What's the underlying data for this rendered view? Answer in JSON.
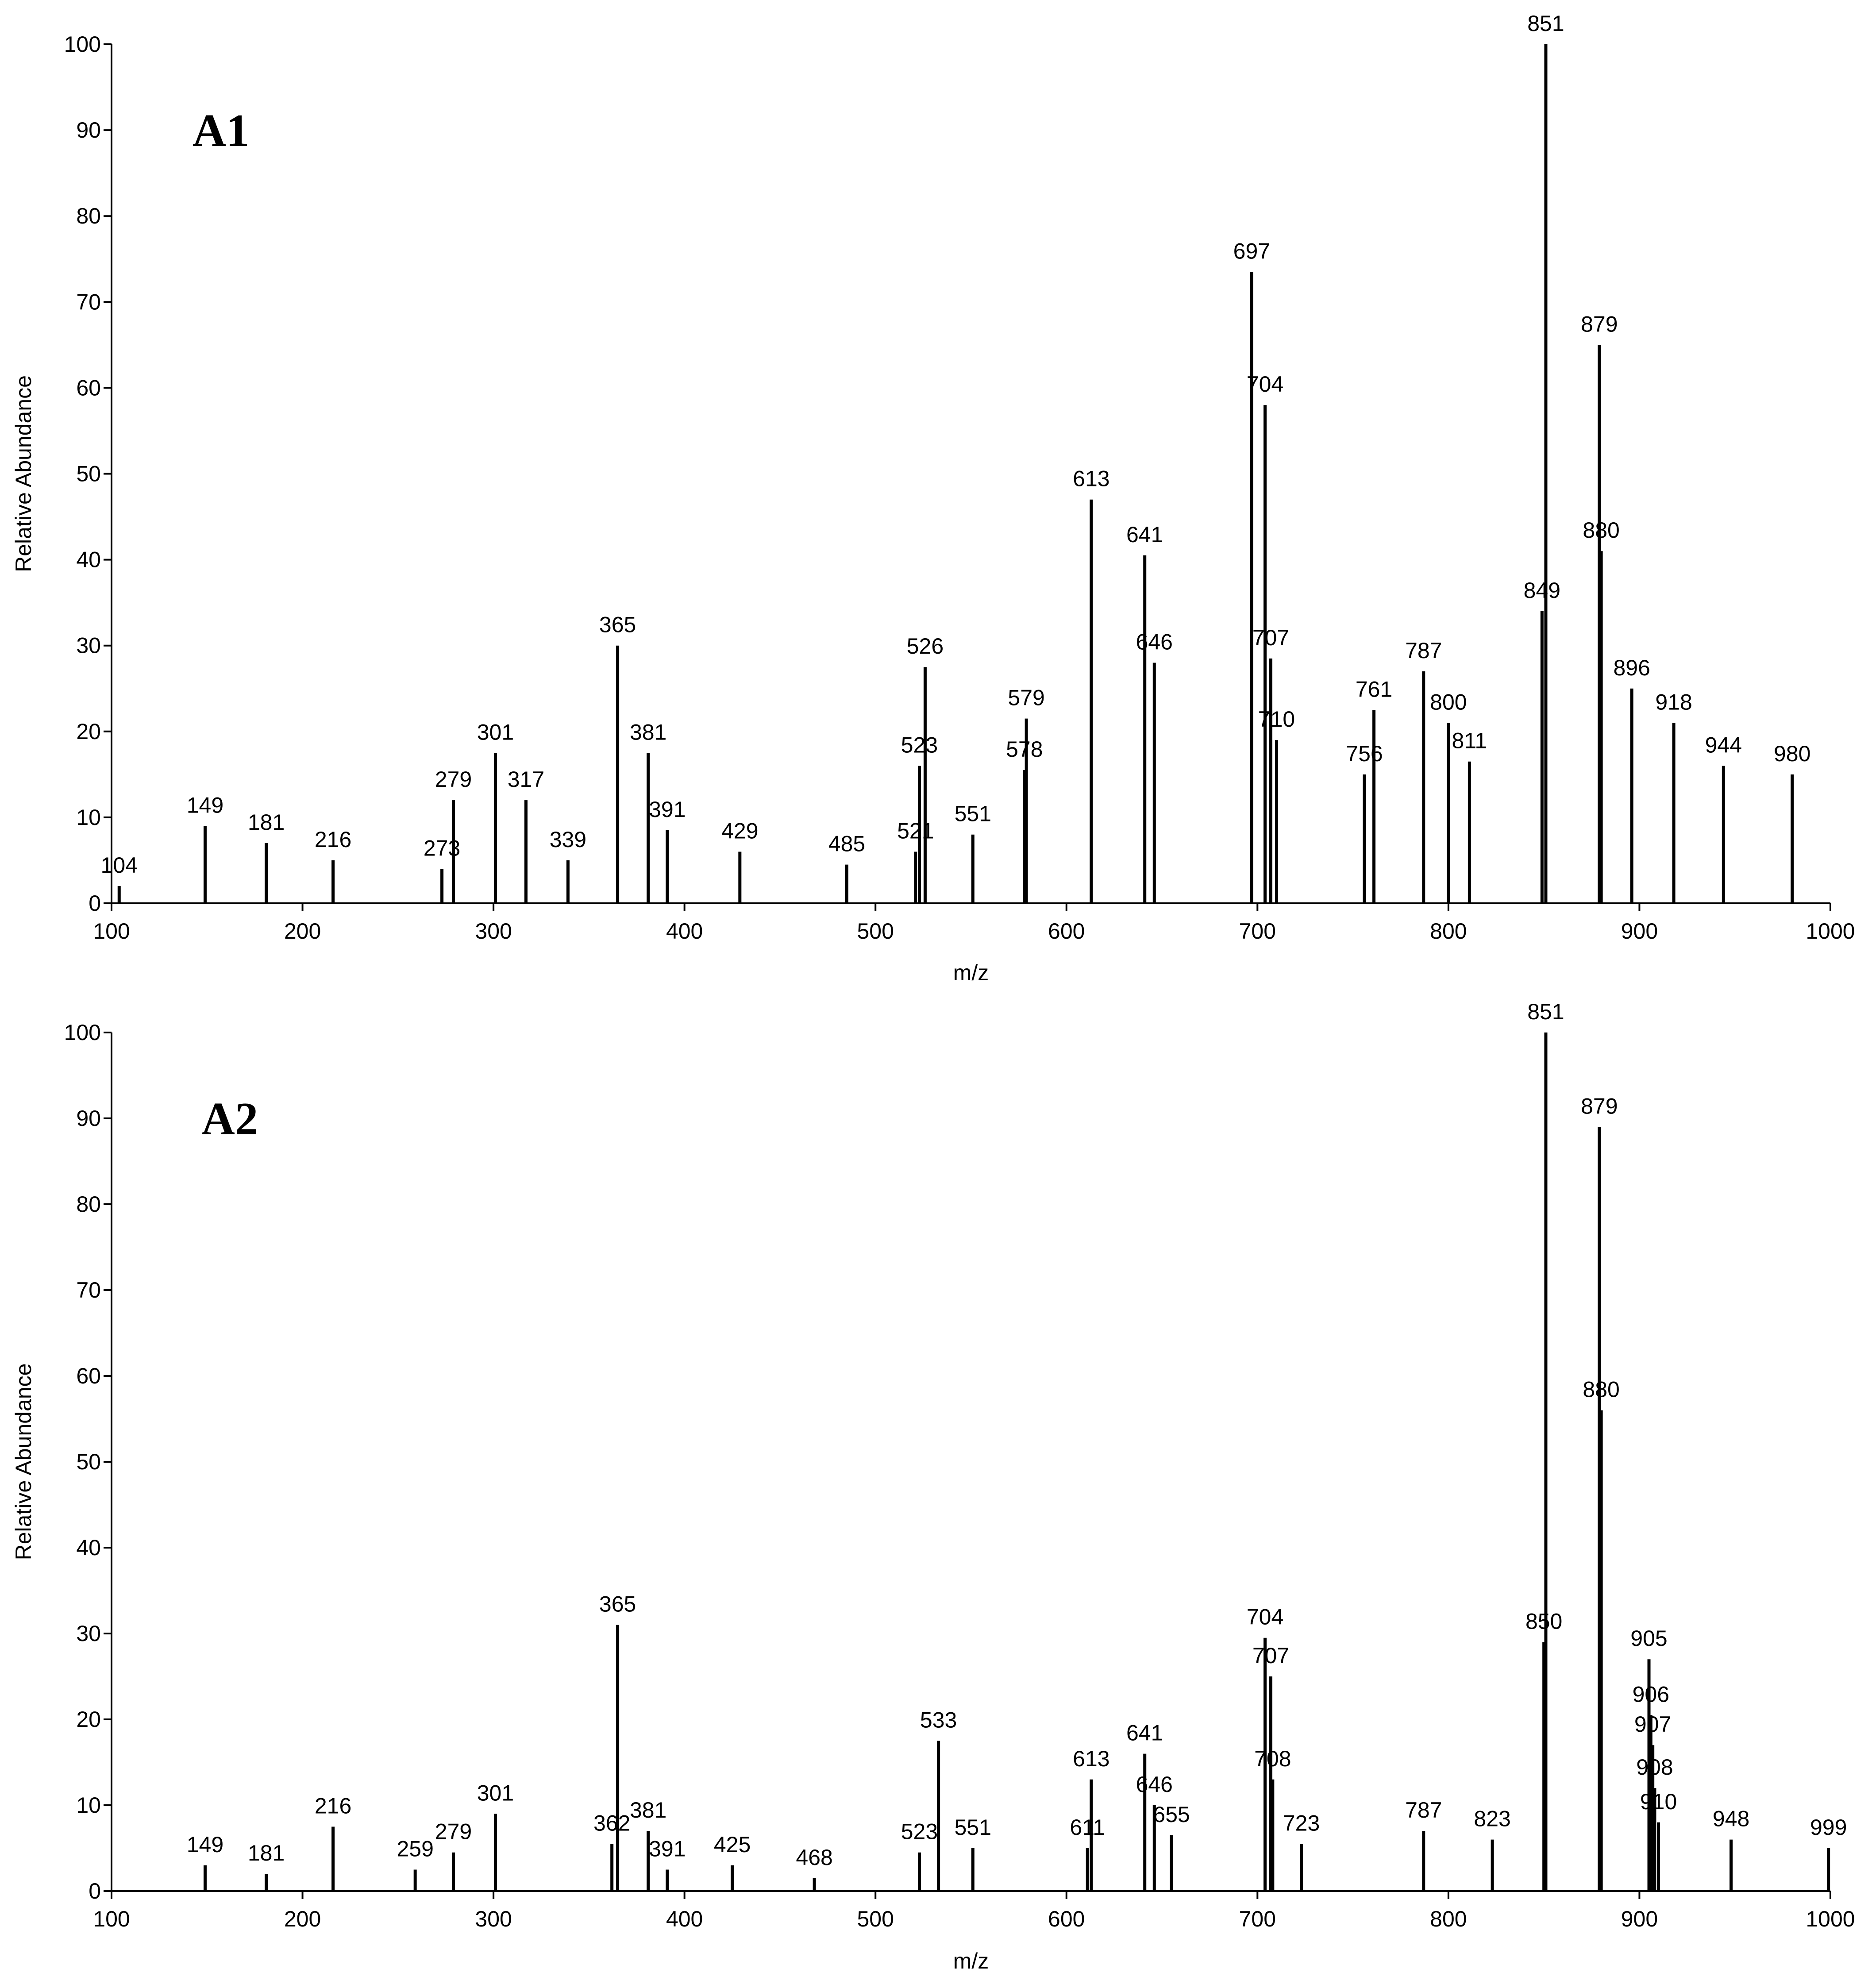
{
  "chart_data": [
    {
      "type": "bar",
      "title": "A1",
      "x_label": "m/z",
      "y_label": "Relative Abundance",
      "color": "#000000",
      "x": [
        104,
        149,
        181,
        216,
        273,
        279,
        301,
        317,
        339,
        365,
        381,
        391,
        429,
        485,
        521,
        523,
        526,
        551,
        578,
        579,
        613,
        641,
        646,
        697,
        704,
        707,
        710,
        756,
        761,
        787,
        800,
        811,
        849,
        851,
        879,
        880,
        896,
        918,
        944,
        980
      ],
      "values": [
        2,
        9,
        7,
        5,
        4,
        12,
        17.5,
        12,
        5,
        30,
        17.5,
        8.5,
        6,
        4.5,
        6,
        16,
        27.5,
        8,
        15.5,
        21.5,
        47,
        40.5,
        28,
        73.5,
        58,
        28.5,
        19,
        15,
        22.5,
        27,
        21,
        16.5,
        34,
        100,
        65,
        41,
        25,
        21,
        16,
        15
      ],
      "xlim": [
        100,
        1000
      ],
      "xticks": [
        100,
        200,
        300,
        400,
        500,
        600,
        700,
        800,
        900,
        1000
      ],
      "ylim": [
        0,
        100
      ],
      "yticks": [
        0,
        10,
        20,
        30,
        40,
        50,
        60,
        70,
        80,
        90,
        100
      ]
    },
    {
      "type": "bar",
      "title": "A2",
      "x_label": "m/z",
      "y_label": "Relative Abundance",
      "color": "#000000",
      "x": [
        149,
        181,
        216,
        259,
        279,
        301,
        362,
        365,
        381,
        391,
        425,
        468,
        523,
        533,
        551,
        611,
        613,
        641,
        646,
        655,
        704,
        707,
        708,
        723,
        787,
        823,
        850,
        851,
        879,
        880,
        905,
        906,
        907,
        908,
        910,
        948,
        999
      ],
      "values": [
        3,
        2,
        7.5,
        2.5,
        4.5,
        9,
        5.5,
        31,
        7,
        2.5,
        3,
        1.5,
        4.5,
        17.5,
        5,
        5,
        13,
        16,
        10,
        6.5,
        29.5,
        25,
        13,
        5.5,
        7,
        6,
        29,
        100,
        89,
        56,
        27,
        20.5,
        17,
        12,
        8,
        6,
        5
      ],
      "xlim": [
        100,
        1000
      ],
      "xticks": [
        100,
        200,
        300,
        400,
        500,
        600,
        700,
        800,
        900,
        1000
      ],
      "ylim": [
        0,
        100
      ],
      "yticks": [
        0,
        10,
        20,
        30,
        40,
        50,
        60,
        70,
        80,
        90,
        100
      ]
    }
  ]
}
